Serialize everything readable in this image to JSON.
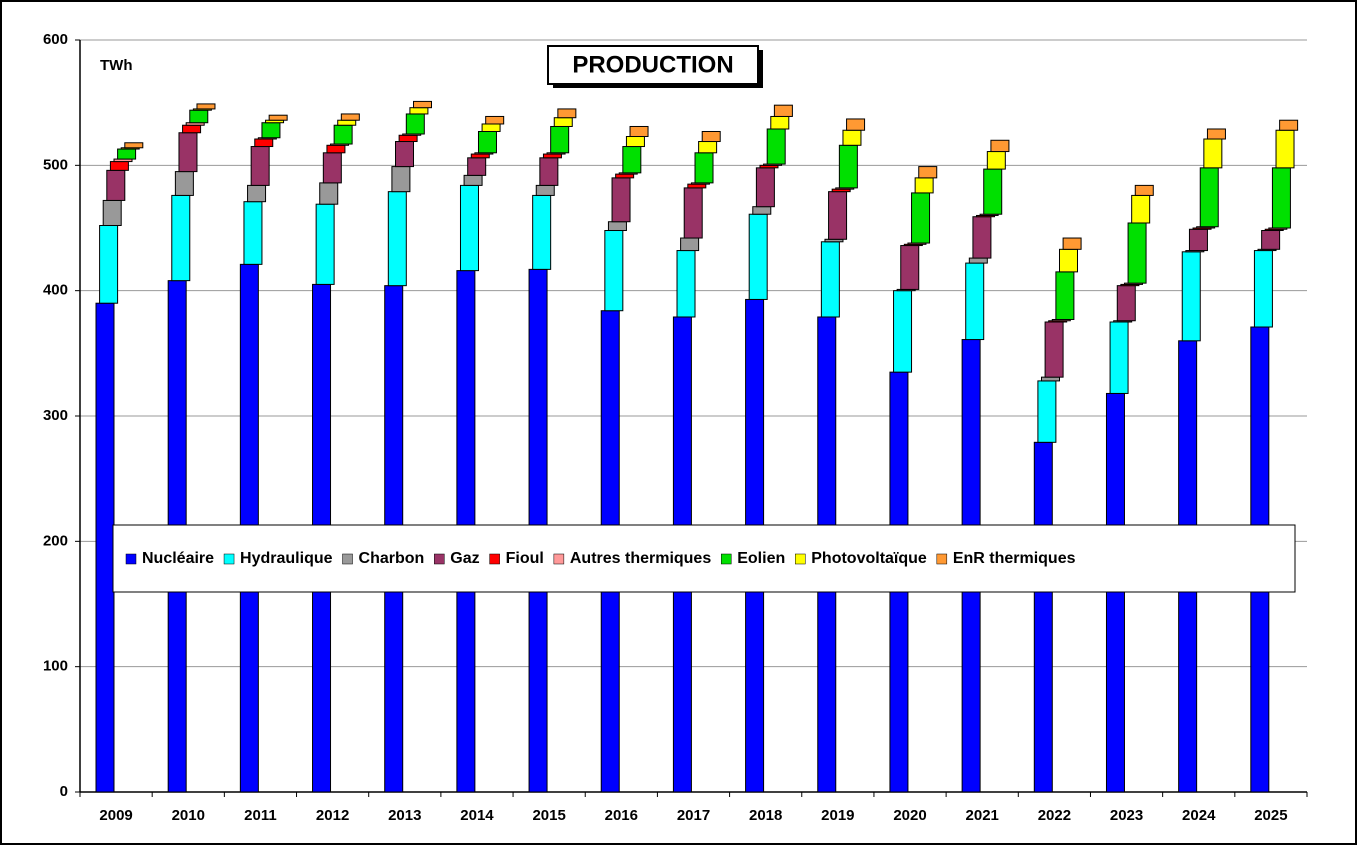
{
  "chart_data": {
    "type": "stacked_bar",
    "title": "PRODUCTION",
    "y_label": "TWh",
    "categories": [
      "2009",
      "2010",
      "2011",
      "2012",
      "2013",
      "2014",
      "2015",
      "2016",
      "2017",
      "2018",
      "2019",
      "2020",
      "2021",
      "2022",
      "2023",
      "2024",
      "2025"
    ],
    "series": [
      {
        "name": "Nucléaire",
        "color": "#0000ff",
        "values": [
          390,
          408,
          421,
          405,
          404,
          416,
          417,
          384,
          379,
          393,
          379,
          335,
          361,
          279,
          318,
          360,
          371
        ]
      },
      {
        "name": "Hydraulique",
        "color": "#00ffff",
        "values": [
          62,
          68,
          50,
          64,
          75,
          68,
          59,
          64,
          53,
          68,
          60,
          65,
          61,
          49,
          57,
          71,
          61
        ]
      },
      {
        "name": "Charbon",
        "color": "#999999",
        "values": [
          20,
          19,
          13,
          17,
          20,
          8,
          8,
          7,
          10,
          6,
          2,
          1,
          4,
          3,
          1,
          1,
          1
        ]
      },
      {
        "name": "Gaz",
        "color": "#993366",
        "values": [
          24,
          31,
          31,
          24,
          20,
          14,
          22,
          35,
          40,
          31,
          38,
          35,
          33,
          44,
          28,
          17,
          15
        ]
      },
      {
        "name": "Fioul",
        "color": "#ff0000",
        "values": [
          7,
          6,
          6,
          6,
          5,
          3,
          3,
          3,
          3,
          2,
          2,
          1,
          1,
          1,
          1,
          1,
          1
        ]
      },
      {
        "name": "Autres thermiques",
        "color": "#ff9999",
        "values": [
          2,
          2,
          1,
          1,
          1,
          1,
          1,
          1,
          1,
          1,
          1,
          1,
          1,
          1,
          1,
          1,
          1
        ]
      },
      {
        "name": "Eolien",
        "color": "#00e000",
        "values": [
          8,
          10,
          12,
          15,
          16,
          17,
          21,
          21,
          24,
          28,
          34,
          40,
          36,
          38,
          48,
          47,
          48
        ]
      },
      {
        "name": "Photovoltaïque",
        "color": "#ffff00",
        "values": [
          1,
          1,
          2,
          4,
          5,
          6,
          7,
          8,
          9,
          10,
          12,
          12,
          14,
          18,
          22,
          23,
          30
        ]
      },
      {
        "name": "EnR thermiques",
        "color": "#ff9933",
        "values": [
          4,
          4,
          4,
          5,
          5,
          6,
          7,
          8,
          8,
          9,
          9,
          9,
          9,
          9,
          8,
          8,
          8
        ]
      }
    ],
    "ylim": [
      0,
      600
    ],
    "yticks": [
      0,
      100,
      200,
      300,
      400,
      500,
      600
    ],
    "grid": true,
    "legend": "center"
  }
}
